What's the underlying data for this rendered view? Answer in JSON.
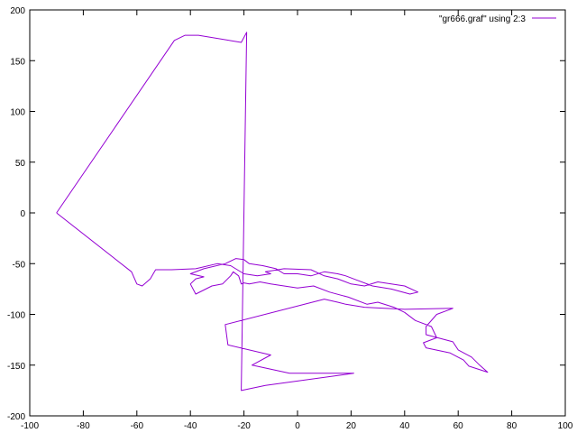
{
  "chart_data": {
    "type": "line",
    "title": "",
    "xlabel": "",
    "ylabel": "",
    "xlim": [
      -100,
      100
    ],
    "ylim": [
      -200,
      200
    ],
    "x_ticks": [
      -100,
      -80,
      -60,
      -40,
      -20,
      0,
      20,
      40,
      60,
      80,
      100
    ],
    "y_ticks": [
      -200,
      -150,
      -100,
      -50,
      0,
      50,
      100,
      150,
      200
    ],
    "grid": false,
    "legend_position": "top-right",
    "series": [
      {
        "name": "\"gr666.graf\" using 2:3",
        "color": "#9400d3",
        "points": [
          [
            -90,
            0
          ],
          [
            -46,
            170
          ],
          [
            -42,
            175
          ],
          [
            -37,
            175
          ],
          [
            -21,
            168
          ],
          [
            -19,
            178
          ],
          [
            -21,
            -175
          ],
          [
            -12,
            -170
          ],
          [
            21,
            -158
          ],
          [
            -3,
            -158
          ],
          [
            -17,
            -150
          ],
          [
            -10,
            -140
          ],
          [
            -26,
            -130
          ],
          [
            -27,
            -110
          ],
          [
            10,
            -85
          ],
          [
            15,
            -88
          ],
          [
            18,
            -90
          ],
          [
            25,
            -93
          ],
          [
            40,
            -95
          ],
          [
            58,
            -94
          ],
          [
            52,
            -100
          ],
          [
            48,
            -112
          ],
          [
            48,
            -120
          ],
          [
            58,
            -127
          ],
          [
            60,
            -135
          ],
          [
            65,
            -142
          ],
          [
            68,
            -150
          ],
          [
            71,
            -157
          ],
          [
            64,
            -151
          ],
          [
            62,
            -145
          ],
          [
            57,
            -138
          ],
          [
            48,
            -133
          ],
          [
            47,
            -128
          ],
          [
            52,
            -123
          ],
          [
            50,
            -112
          ],
          [
            44,
            -106
          ],
          [
            40,
            -98
          ],
          [
            36,
            -93
          ],
          [
            30,
            -88
          ],
          [
            26,
            -90
          ],
          [
            19,
            -83
          ],
          [
            12,
            -78
          ],
          [
            6,
            -72
          ],
          [
            0,
            -74
          ],
          [
            -5,
            -72
          ],
          [
            -10,
            -70
          ],
          [
            -14,
            -68
          ],
          [
            -18,
            -70
          ],
          [
            -20,
            -69
          ],
          [
            -21,
            -70
          ],
          [
            -22,
            -62
          ],
          [
            -24,
            -58
          ],
          [
            -25,
            -62
          ],
          [
            -28,
            -70
          ],
          [
            -32,
            -72
          ],
          [
            -38,
            -80
          ],
          [
            -40,
            -70
          ],
          [
            -38,
            -65
          ],
          [
            -35,
            -63
          ],
          [
            -40,
            -60
          ],
          [
            -35,
            -55
          ],
          [
            -27,
            -50
          ],
          [
            -23,
            -45
          ],
          [
            -20,
            -46
          ],
          [
            -18,
            -50
          ],
          [
            -13,
            -52
          ],
          [
            -8,
            -55
          ],
          [
            -5,
            -60
          ],
          [
            0,
            -60
          ],
          [
            5,
            -62
          ],
          [
            10,
            -58
          ],
          [
            15,
            -60
          ],
          [
            18,
            -62
          ],
          [
            22,
            -66
          ],
          [
            28,
            -72
          ],
          [
            35,
            -75
          ],
          [
            42,
            -80
          ],
          [
            45,
            -78
          ],
          [
            40,
            -72
          ],
          [
            30,
            -68
          ],
          [
            25,
            -72
          ],
          [
            20,
            -70
          ],
          [
            15,
            -65
          ],
          [
            10,
            -62
          ],
          [
            5,
            -56
          ],
          [
            -5,
            -55
          ],
          [
            -12,
            -58
          ],
          [
            -10,
            -60
          ],
          [
            -15,
            -62
          ],
          [
            -20,
            -60
          ],
          [
            -25,
            -52
          ],
          [
            -30,
            -50
          ],
          [
            -38,
            -55
          ],
          [
            -47,
            -56
          ],
          [
            -53,
            -56
          ],
          [
            -55,
            -65
          ],
          [
            -58,
            -72
          ],
          [
            -60,
            -70
          ],
          [
            -62,
            -58
          ],
          [
            -90,
            0
          ]
        ]
      }
    ]
  }
}
